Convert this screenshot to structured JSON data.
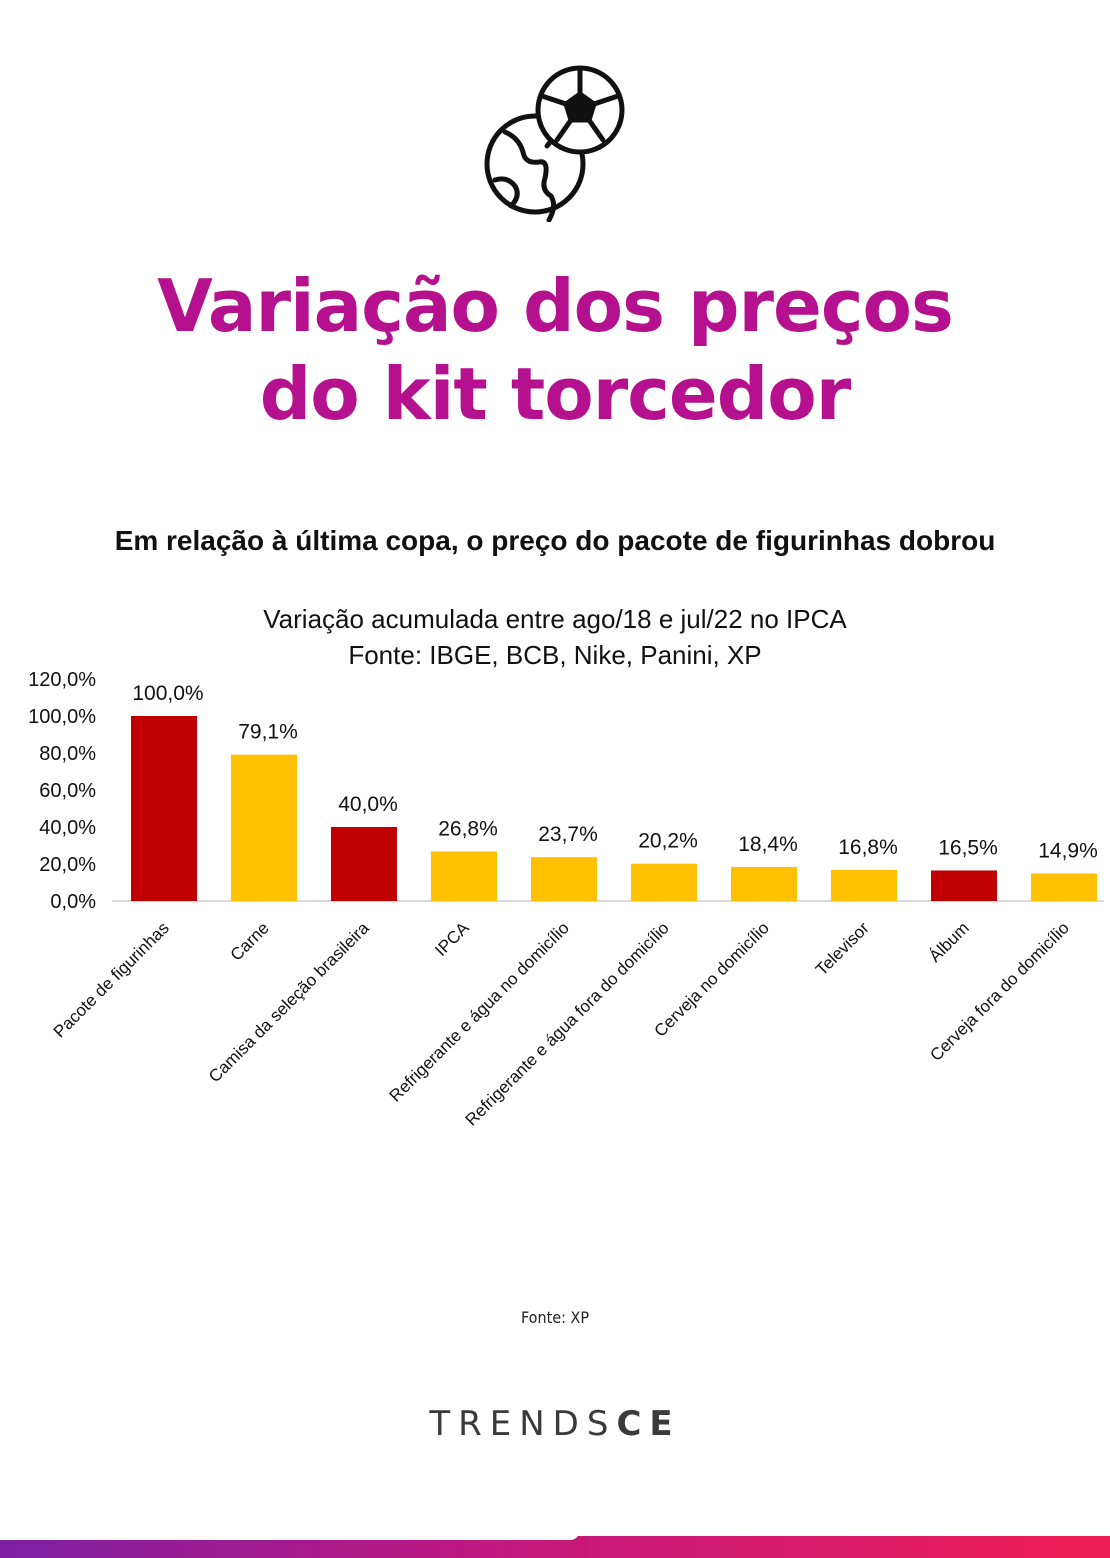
{
  "page": {
    "title": "Variação dos preços\ndo kit torcedor",
    "footnote": "Fonte: XP",
    "brand_light": "TRENDS",
    "brand_bold": "CE",
    "icons": [
      "globe-icon",
      "soccer-ball-icon"
    ]
  },
  "chart_data": {
    "type": "bar",
    "title": "Em relação à última copa, o preço do pacote de figurinhas dobrou",
    "subtitle": "Variação acumulada entre ago/18 e jul/22 no IPCA",
    "source": "Fonte: IBGE, BCB, Nike, Panini, XP",
    "categories": [
      "Pacote de figurinhas",
      "Carne",
      "Camisa da seleção brasileira",
      "IPCA",
      "Refrigerante e água no domicílio",
      "Refrigerante e água fora do domicílio",
      "Cerveja no domicílio",
      "Televisor",
      "Álbum",
      "Cerveja fora do domicílio"
    ],
    "values": [
      100.0,
      79.1,
      40.0,
      26.8,
      23.7,
      20.2,
      18.4,
      16.8,
      16.5,
      14.9
    ],
    "value_labels": [
      "100,0%",
      "79,1%",
      "40,0%",
      "26,8%",
      "23,7%",
      "20,2%",
      "18,4%",
      "16,8%",
      "16,5%",
      "14,9%"
    ],
    "colors": [
      "#c00000",
      "#ffc000",
      "#c00000",
      "#ffc000",
      "#ffc000",
      "#ffc000",
      "#ffc000",
      "#ffc000",
      "#c00000",
      "#ffc000"
    ],
    "yticks": [
      "0,0%",
      "20,0%",
      "40,0%",
      "60,0%",
      "80,0%",
      "100,0%",
      "120,0%"
    ],
    "ylim": [
      0,
      120
    ],
    "grid": false,
    "legend": "none"
  }
}
